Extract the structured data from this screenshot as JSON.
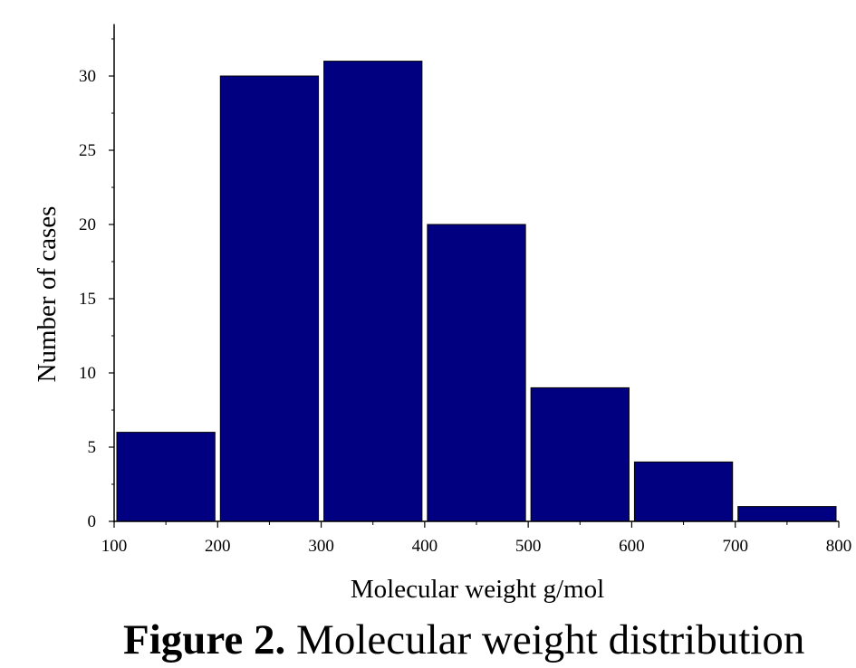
{
  "chart_data": {
    "type": "bar",
    "bins": [
      {
        "from": 100,
        "to": 200,
        "value": 6
      },
      {
        "from": 200,
        "to": 300,
        "value": 30
      },
      {
        "from": 300,
        "to": 400,
        "value": 31
      },
      {
        "from": 400,
        "to": 500,
        "value": 20
      },
      {
        "from": 500,
        "to": 600,
        "value": 9
      },
      {
        "from": 600,
        "to": 700,
        "value": 4
      },
      {
        "from": 700,
        "to": 800,
        "value": 1
      }
    ],
    "xlabel": "Molecular weight g/mol",
    "ylabel": "Number of cases",
    "xlim": [
      100,
      800
    ],
    "ylim": [
      0,
      33.5
    ],
    "xticks": [
      100,
      200,
      300,
      400,
      500,
      600,
      700,
      800
    ],
    "yticks": [
      0,
      5,
      10,
      15,
      20,
      25,
      30
    ],
    "grid": false,
    "legend": "none",
    "bar_color": "#000080"
  },
  "caption": {
    "label": "Figure 2.",
    "text": " Molecular weight distribution"
  }
}
